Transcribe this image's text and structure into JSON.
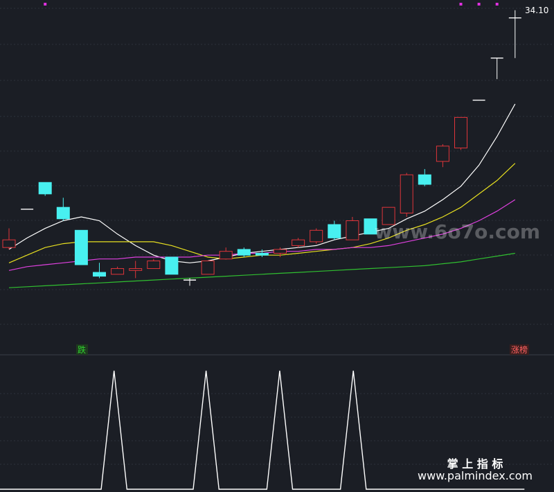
{
  "chart_data": [
    {
      "type": "candlestick",
      "panel": "main",
      "last_price_label": "34.10",
      "markers": {
        "fall_label": "跌",
        "limit_up_label": "涨榜"
      },
      "watermark": "www.6o7o.com",
      "colors": {
        "up": "#e0353a",
        "down": "#48f0f0",
        "flat": "#ffffff",
        "ma_white": "#ffffff",
        "ma_yellow": "#e8e020",
        "ma_magenta": "#e040e0",
        "ma_green": "#30c030",
        "dot": "#e030e0",
        "fall_text": "#30d030",
        "limit_text": "#ff6060"
      },
      "y_domain": [
        17.0,
        34.6
      ],
      "candles": [
        {
          "o": 22.1,
          "h": 23.1,
          "l": 22.0,
          "c": 22.5
        },
        {
          "o": 24.1,
          "h": 24.1,
          "l": 24.1,
          "c": 24.1
        },
        {
          "o": 25.5,
          "h": 25.5,
          "l": 24.8,
          "c": 24.9
        },
        {
          "o": 24.2,
          "h": 24.7,
          "l": 23.5,
          "c": 23.6
        },
        {
          "o": 23.0,
          "h": 23.0,
          "l": 21.2,
          "c": 21.2
        },
        {
          "o": 20.8,
          "h": 21.3,
          "l": 20.5,
          "c": 20.6
        },
        {
          "o": 20.7,
          "h": 21.1,
          "l": 20.7,
          "c": 21.0
        },
        {
          "o": 20.9,
          "h": 21.4,
          "l": 20.5,
          "c": 21.0
        },
        {
          "o": 21.0,
          "h": 21.5,
          "l": 21.0,
          "c": 21.4
        },
        {
          "o": 21.6,
          "h": 21.6,
          "l": 20.7,
          "c": 20.7
        },
        {
          "o": 20.4,
          "h": 20.5,
          "l": 20.1,
          "c": 20.4
        },
        {
          "o": 20.7,
          "h": 21.4,
          "l": 20.7,
          "c": 21.4
        },
        {
          "o": 21.5,
          "h": 22.1,
          "l": 21.5,
          "c": 21.9
        },
        {
          "o": 22.0,
          "h": 22.1,
          "l": 21.6,
          "c": 21.7
        },
        {
          "o": 21.8,
          "h": 22.0,
          "l": 21.6,
          "c": 21.7
        },
        {
          "o": 21.8,
          "h": 22.1,
          "l": 21.6,
          "c": 22.0
        },
        {
          "o": 22.2,
          "h": 22.6,
          "l": 22.1,
          "c": 22.5
        },
        {
          "o": 22.4,
          "h": 23.1,
          "l": 22.3,
          "c": 23.0
        },
        {
          "o": 23.3,
          "h": 23.5,
          "l": 22.5,
          "c": 22.6
        },
        {
          "o": 22.5,
          "h": 23.7,
          "l": 22.5,
          "c": 23.5
        },
        {
          "o": 23.6,
          "h": 23.6,
          "l": 22.8,
          "c": 22.8
        },
        {
          "o": 23.3,
          "h": 24.2,
          "l": 23.3,
          "c": 24.2
        },
        {
          "o": 23.9,
          "h": 26.0,
          "l": 23.7,
          "c": 25.9
        },
        {
          "o": 25.9,
          "h": 26.2,
          "l": 25.3,
          "c": 25.4
        },
        {
          "o": 26.6,
          "h": 27.5,
          "l": 26.3,
          "c": 27.4
        },
        {
          "o": 27.3,
          "h": 28.9,
          "l": 27.2,
          "c": 28.9
        },
        {
          "o": 29.8,
          "h": 29.8,
          "l": 29.8,
          "c": 29.8
        },
        {
          "o": 32.0,
          "h": 32.0,
          "l": 30.9,
          "c": 32.0
        },
        {
          "o": 34.1,
          "h": 34.5,
          "l": 32.0,
          "c": 34.1
        }
      ],
      "moving_averages": [
        {
          "color_key": "ma_white",
          "values": [
            22.0,
            22.6,
            23.1,
            23.5,
            23.7,
            23.5,
            22.8,
            22.2,
            21.7,
            21.4,
            21.3,
            21.4,
            21.6,
            21.8,
            21.9,
            22.0,
            22.1,
            22.2,
            22.5,
            22.7,
            22.9,
            23.1,
            23.6,
            24.0,
            24.6,
            25.3,
            26.4,
            27.9,
            29.6
          ]
        },
        {
          "color_key": "ma_yellow",
          "values": [
            21.3,
            21.7,
            22.1,
            22.3,
            22.4,
            22.4,
            22.4,
            22.4,
            22.4,
            22.2,
            21.9,
            21.6,
            21.5,
            21.6,
            21.7,
            21.7,
            21.8,
            21.9,
            22.0,
            22.1,
            22.3,
            22.6,
            23.0,
            23.3,
            23.7,
            24.2,
            24.9,
            25.6,
            26.5
          ]
        },
        {
          "color_key": "ma_magenta",
          "values": [
            20.9,
            21.1,
            21.2,
            21.3,
            21.4,
            21.5,
            21.5,
            21.6,
            21.6,
            21.6,
            21.6,
            21.7,
            21.7,
            21.8,
            21.8,
            21.9,
            21.9,
            22.0,
            22.0,
            22.1,
            22.1,
            22.2,
            22.4,
            22.6,
            22.8,
            23.1,
            23.5,
            24.0,
            24.6
          ]
        },
        {
          "color_key": "ma_green",
          "values": [
            20.0,
            20.05,
            20.1,
            20.15,
            20.2,
            20.25,
            20.3,
            20.35,
            20.4,
            20.45,
            20.5,
            20.55,
            20.6,
            20.65,
            20.7,
            20.75,
            20.8,
            20.85,
            20.9,
            20.95,
            21.0,
            21.05,
            21.1,
            21.15,
            21.25,
            21.35,
            21.5,
            21.65,
            21.8
          ]
        }
      ],
      "top_dots": [
        2,
        25,
        26,
        27
      ]
    },
    {
      "type": "line",
      "panel": "indicator",
      "watermark": {
        "title": "掌 上 指 标",
        "url": "www.palmindex.com"
      },
      "color": "#ffffff",
      "y_domain": [
        0,
        1
      ],
      "x": [
        0,
        5.5,
        6.2,
        6.9,
        10.5,
        11.2,
        11.9,
        14.5,
        15.2,
        15.9,
        18.5,
        19.2,
        19.9,
        28.5
      ],
      "values": [
        0,
        0,
        1,
        0,
        0,
        1,
        0,
        0,
        1,
        0,
        0,
        1,
        0,
        0
      ]
    }
  ]
}
